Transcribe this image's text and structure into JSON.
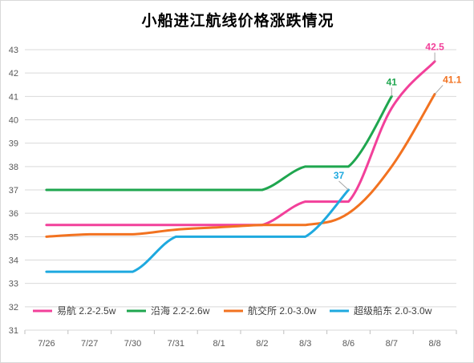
{
  "chart_data": {
    "type": "line",
    "title": "小船进江航线价格涨跌情况",
    "categories": [
      "7/26",
      "7/27",
      "7/30",
      "7/31",
      "8/1",
      "8/2",
      "8/3",
      "8/6",
      "8/7",
      "8/8"
    ],
    "ylim": [
      31,
      43
    ],
    "yticks": [
      31,
      32,
      33,
      34,
      35,
      36,
      37,
      38,
      39,
      40,
      41,
      42,
      43
    ],
    "grid": "horizontal",
    "legend_position": "bottom-inside",
    "series": [
      {
        "name": "易航 2.2-2.5w",
        "color": "#f2409a",
        "values": [
          35.5,
          35.5,
          35.5,
          35.5,
          35.5,
          35.5,
          36.5,
          36.5,
          40.5,
          42.5
        ],
        "end_label": "42.5"
      },
      {
        "name": "沿海 2.2-2.6w",
        "color": "#1fa64f",
        "values": [
          37,
          37,
          37,
          37,
          37,
          37,
          38,
          38,
          41,
          null
        ],
        "end_label": "41"
      },
      {
        "name": "航交所 2.0-3.0w",
        "color": "#f27220",
        "values": [
          35,
          35.1,
          35.1,
          35.3,
          35.4,
          35.5,
          35.5,
          36,
          38,
          41.1
        ],
        "end_label": "41.1"
      },
      {
        "name": "超级船东 2.0-3.0w",
        "color": "#1ea9df",
        "values": [
          33.5,
          33.5,
          33.5,
          35,
          35,
          35,
          35,
          37,
          null,
          null
        ],
        "end_label": "37"
      }
    ]
  }
}
